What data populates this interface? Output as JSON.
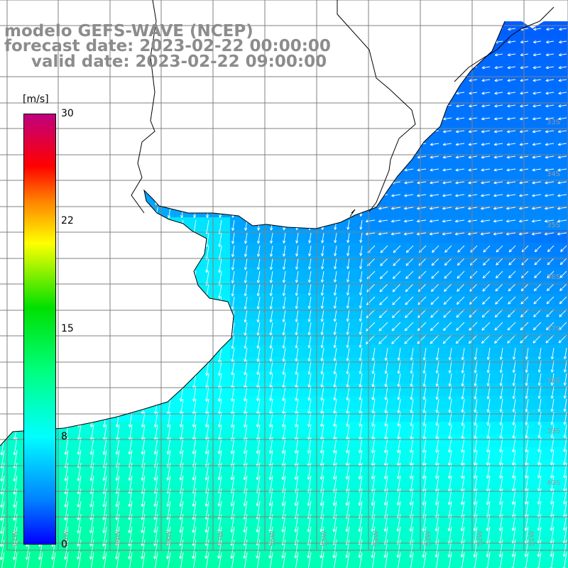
{
  "title": {
    "line1": "modelo GEFS-WAVE (NCEP)",
    "line2": "forecast date: 2023-02-22 00:00:00",
    "line3": "valid date: 2023-02-22 09:00:00"
  },
  "legend": {
    "unit": "[m/s]",
    "ticks": [
      "30",
      "22",
      "15",
      "8",
      "0"
    ],
    "tick_values": [
      30,
      22,
      15,
      8,
      0
    ],
    "colors": [
      "#0000ff",
      "#0080ff",
      "#00ffff",
      "#00ff80",
      "#00e000",
      "#ffff00",
      "#ff8000",
      "#ff0000",
      "#c00080"
    ]
  },
  "map": {
    "lat_labels": [
      "33S",
      "34S",
      "35S",
      "36S",
      "37S",
      "38S",
      "39S",
      "40S"
    ],
    "lon_labels": [
      "61W",
      "60W",
      "59W",
      "58W",
      "57W",
      "56W",
      "55W",
      "54W",
      "53W",
      "52W",
      "51W"
    ],
    "land_color": "#ffffff",
    "grid_color": "#808080",
    "coast_color": "#000000",
    "arrow_color": "#ffffff"
  }
}
